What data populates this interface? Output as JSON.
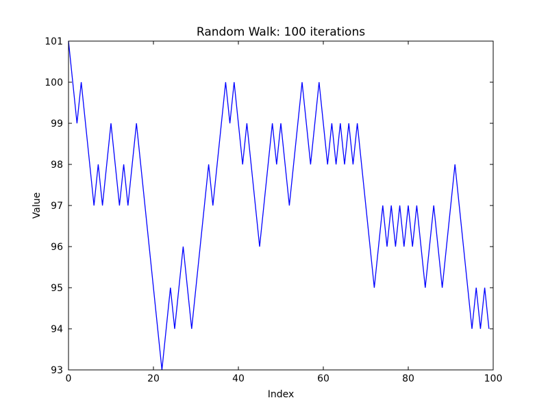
{
  "chart_data": {
    "type": "line",
    "title": "Random Walk: 100 iterations",
    "xlabel": "Index",
    "ylabel": "Value",
    "xlim": [
      0,
      100
    ],
    "ylim": [
      93,
      101
    ],
    "xticks": [
      0,
      20,
      40,
      60,
      80,
      100
    ],
    "yticks": [
      93,
      94,
      95,
      96,
      97,
      98,
      99,
      100,
      101
    ],
    "grid": false,
    "line_color": "#0000ff",
    "x": [
      0,
      1,
      2,
      3,
      4,
      5,
      6,
      7,
      8,
      9,
      10,
      11,
      12,
      13,
      14,
      15,
      16,
      17,
      18,
      19,
      20,
      21,
      22,
      23,
      24,
      25,
      26,
      27,
      28,
      29,
      30,
      31,
      32,
      33,
      34,
      35,
      36,
      37,
      38,
      39,
      40,
      41,
      42,
      43,
      44,
      45,
      46,
      47,
      48,
      49,
      50,
      51,
      52,
      53,
      54,
      55,
      56,
      57,
      58,
      59,
      60,
      61,
      62,
      63,
      64,
      65,
      66,
      67,
      68,
      69,
      70,
      71,
      72,
      73,
      74,
      75,
      76,
      77,
      78,
      79,
      80,
      81,
      82,
      83,
      84,
      85,
      86,
      87,
      88,
      89,
      90,
      91,
      92,
      93,
      94,
      95,
      96,
      97,
      98,
      99
    ],
    "values": [
      101,
      100,
      99,
      100,
      99,
      98,
      97,
      98,
      97,
      98,
      99,
      98,
      97,
      98,
      97,
      98,
      99,
      98,
      97,
      96,
      95,
      94,
      93,
      94,
      95,
      94,
      95,
      96,
      95,
      94,
      95,
      96,
      97,
      98,
      97,
      98,
      99,
      100,
      99,
      100,
      99,
      98,
      99,
      98,
      97,
      96,
      97,
      98,
      99,
      98,
      99,
      98,
      97,
      98,
      99,
      100,
      99,
      98,
      99,
      100,
      99,
      98,
      99,
      98,
      99,
      98,
      99,
      98,
      99,
      98,
      97,
      96,
      95,
      96,
      97,
      96,
      97,
      96,
      97,
      96,
      97,
      96,
      97,
      96,
      95,
      96,
      97,
      96,
      95,
      96,
      97,
      98,
      97,
      96,
      95,
      94,
      95,
      94,
      95,
      94
    ]
  }
}
